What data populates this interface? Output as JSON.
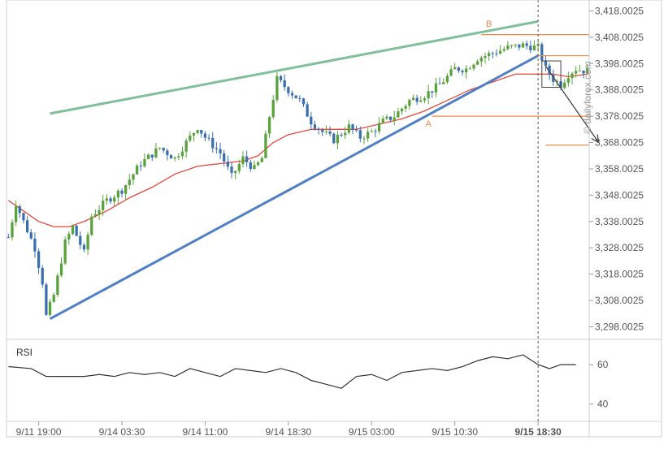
{
  "watermark": "© dailyforex.com",
  "colors": {
    "bull": "#58a23a",
    "bear": "#3a6fae",
    "ma": "#e8473a",
    "support": "#4f7fc4",
    "resistance": "#7fbf9a",
    "level": "#f08a4c",
    "axis_text": "#555555",
    "grid": "#e6e6e6",
    "rsi_line": "#333333",
    "arrow": "#444444",
    "label": "#f08a4c"
  },
  "chart_data": {
    "type": "candlestick",
    "y_ticks": [
      "3,418.0025",
      "3,408.0025",
      "3,398.0025",
      "3,388.0025",
      "3,378.0025",
      "3,368.0025",
      "3,358.0025",
      "3,348.0025",
      "3,338.0025",
      "3,328.0025",
      "3,318.0025",
      "3,308.0025",
      "3,298.0025"
    ],
    "ylim": [
      3293.5,
      3420
    ],
    "x_ticks": [
      "9/11 19:00",
      "9/14 03:30",
      "9/14 11:00",
      "9/14 18:30",
      "9/15 03:00",
      "9/15 10:30",
      "9/15 18:30"
    ],
    "x_tick_index": [
      8,
      30,
      52,
      74,
      96,
      118,
      140
    ],
    "n_candles": 154,
    "close_path": [
      [
        0,
        3332
      ],
      [
        2,
        3345
      ],
      [
        4,
        3338
      ],
      [
        7,
        3328
      ],
      [
        9,
        3315
      ],
      [
        10,
        3302
      ],
      [
        12,
        3310
      ],
      [
        15,
        3330
      ],
      [
        17,
        3336
      ],
      [
        20,
        3326
      ],
      [
        22,
        3340
      ],
      [
        26,
        3346
      ],
      [
        30,
        3350
      ],
      [
        35,
        3360
      ],
      [
        40,
        3366
      ],
      [
        44,
        3362
      ],
      [
        47,
        3368
      ],
      [
        50,
        3374
      ],
      [
        52,
        3370
      ],
      [
        56,
        3364
      ],
      [
        59,
        3355
      ],
      [
        62,
        3362
      ],
      [
        65,
        3358
      ],
      [
        67,
        3362
      ],
      [
        69,
        3378
      ],
      [
        71,
        3392
      ],
      [
        74,
        3388
      ],
      [
        77,
        3384
      ],
      [
        80,
        3376
      ],
      [
        83,
        3372
      ],
      [
        86,
        3369
      ],
      [
        90,
        3374
      ],
      [
        93,
        3370
      ],
      [
        96,
        3372
      ],
      [
        99,
        3376
      ],
      [
        102,
        3378
      ],
      [
        106,
        3384
      ],
      [
        110,
        3386
      ],
      [
        114,
        3390
      ],
      [
        118,
        3396
      ],
      [
        121,
        3396
      ],
      [
        124,
        3400
      ],
      [
        128,
        3402
      ],
      [
        132,
        3404
      ],
      [
        136,
        3405
      ],
      [
        140,
        3404
      ],
      [
        142,
        3396
      ],
      [
        144,
        3392
      ],
      [
        146,
        3390
      ],
      [
        148,
        3394
      ],
      [
        150,
        3396
      ],
      [
        153,
        3395
      ]
    ],
    "ma_path": [
      [
        0,
        3346
      ],
      [
        4,
        3342
      ],
      [
        8,
        3338
      ],
      [
        12,
        3336
      ],
      [
        16,
        3336
      ],
      [
        20,
        3338
      ],
      [
        26,
        3342
      ],
      [
        32,
        3347
      ],
      [
        38,
        3351
      ],
      [
        44,
        3356
      ],
      [
        50,
        3359
      ],
      [
        56,
        3360
      ],
      [
        62,
        3361
      ],
      [
        66,
        3363
      ],
      [
        70,
        3368
      ],
      [
        74,
        3371
      ],
      [
        80,
        3373
      ],
      [
        86,
        3373
      ],
      [
        92,
        3373
      ],
      [
        98,
        3375
      ],
      [
        104,
        3377
      ],
      [
        110,
        3380
      ],
      [
        116,
        3384
      ],
      [
        122,
        3388
      ],
      [
        128,
        3391
      ],
      [
        134,
        3394
      ],
      [
        140,
        3394
      ],
      [
        144,
        3394
      ],
      [
        148,
        3393
      ],
      [
        153,
        3394
      ]
    ],
    "support_line": [
      [
        11,
        3301
      ],
      [
        140,
        3401
      ]
    ],
    "resistance_line": [
      [
        11,
        3379
      ],
      [
        140,
        3414
      ]
    ],
    "levels": [
      {
        "y": 3409,
        "x_from": 125,
        "x_to": 154
      },
      {
        "y": 3401,
        "x_from": 140,
        "x_to": 154
      },
      {
        "y": 3378,
        "x_from": 112,
        "x_to": 154
      },
      {
        "y": 3367,
        "x_from": 142,
        "x_to": 154
      }
    ],
    "point_labels": [
      {
        "label": "B",
        "x": 127,
        "y": 3412
      },
      {
        "label": "A",
        "x": 111,
        "y": 3374
      }
    ],
    "projection_arrow": [
      [
        142,
        3397
      ],
      [
        156,
        3368
      ]
    ],
    "pattern_boxes": [
      {
        "x_from": 141,
        "x_to": 146,
        "y_from": 3389,
        "y_to": 3399
      }
    ],
    "current_time_index": 140,
    "rsi": {
      "label": "RSI",
      "ticks": [
        "60",
        "40"
      ],
      "tick_values": [
        60,
        40
      ],
      "ylim": [
        32,
        72
      ],
      "series": [
        [
          0,
          59
        ],
        [
          6,
          58
        ],
        [
          10,
          54
        ],
        [
          16,
          54
        ],
        [
          20,
          54
        ],
        [
          24,
          55
        ],
        [
          28,
          54
        ],
        [
          32,
          56
        ],
        [
          36,
          55
        ],
        [
          40,
          56
        ],
        [
          44,
          54
        ],
        [
          48,
          58
        ],
        [
          52,
          56
        ],
        [
          56,
          54
        ],
        [
          60,
          58
        ],
        [
          64,
          57
        ],
        [
          68,
          56
        ],
        [
          72,
          58
        ],
        [
          76,
          56
        ],
        [
          80,
          52
        ],
        [
          84,
          50
        ],
        [
          88,
          48
        ],
        [
          92,
          54
        ],
        [
          96,
          55
        ],
        [
          100,
          52
        ],
        [
          104,
          56
        ],
        [
          108,
          57
        ],
        [
          112,
          58
        ],
        [
          116,
          57
        ],
        [
          120,
          59
        ],
        [
          124,
          62
        ],
        [
          128,
          64
        ],
        [
          132,
          63
        ],
        [
          136,
          65
        ],
        [
          140,
          60
        ],
        [
          143,
          58
        ],
        [
          146,
          60
        ],
        [
          150,
          60
        ]
      ]
    }
  }
}
